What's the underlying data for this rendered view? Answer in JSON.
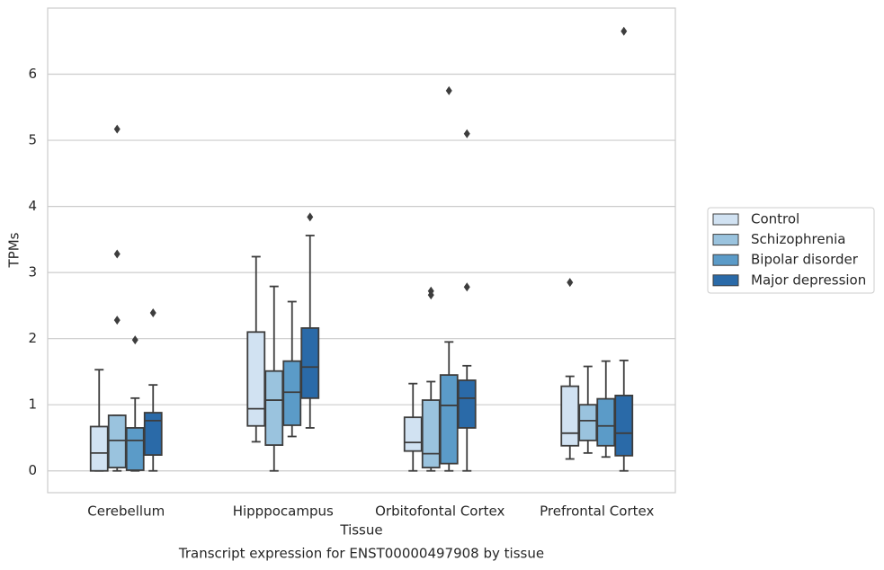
{
  "chart_data": {
    "type": "box",
    "title": "Transcript expression for ENST00000497908 by tissue",
    "x_label": "Tissue",
    "y_label": "TPMs",
    "categories": [
      "Cerebellum",
      "Hipppocampus",
      "Orbitofontal Cortex",
      "Prefrontal Cortex"
    ],
    "ylim": [
      -0.33,
      7.0
    ],
    "yticks": [
      0,
      1,
      2,
      3,
      4,
      5,
      6
    ],
    "grid": true,
    "legend_position": "right",
    "series": [
      {
        "name": "Control",
        "color": "#d1e2f2",
        "min": [
          0,
          0.44,
          0,
          0.18
        ],
        "q1": [
          0,
          0.68,
          0.3,
          0.38
        ],
        "median": [
          0.27,
          0.94,
          0.43,
          0.57
        ],
        "q3": [
          0.67,
          2.1,
          0.81,
          1.28
        ],
        "max": [
          1.53,
          3.24,
          1.32,
          1.43
        ],
        "outliers": [
          [],
          [],
          [],
          [
            2.85
          ]
        ]
      },
      {
        "name": "Schizophrenia",
        "color": "#9ac3de",
        "min": [
          0,
          0,
          0,
          0.27
        ],
        "q1": [
          0.05,
          0.39,
          0.05,
          0.46
        ],
        "median": [
          0.46,
          1.07,
          0.26,
          0.76
        ],
        "q3": [
          0.84,
          1.51,
          1.07,
          1.0
        ],
        "max": [
          0.84,
          2.79,
          1.35,
          1.58
        ],
        "outliers": [
          [
            5.17,
            3.28,
            2.28
          ],
          [],
          [
            2.72,
            2.66
          ],
          []
        ]
      },
      {
        "name": "Bipolar disorder",
        "color": "#5b9bc8",
        "min": [
          0,
          0.52,
          0,
          0.21
        ],
        "q1": [
          0.01,
          0.69,
          0.11,
          0.38
        ],
        "median": [
          0.46,
          1.19,
          0.99,
          0.68
        ],
        "q3": [
          0.65,
          1.66,
          1.45,
          1.09
        ],
        "max": [
          1.1,
          2.56,
          1.95,
          1.66
        ],
        "outliers": [
          [
            1.98
          ],
          [],
          [
            5.75
          ],
          []
        ]
      },
      {
        "name": "Major depression",
        "color": "#2a6aa8",
        "min": [
          0,
          0.65,
          0,
          0
        ],
        "q1": [
          0.24,
          1.1,
          0.65,
          0.23
        ],
        "median": [
          0.76,
          1.57,
          1.1,
          0.57
        ],
        "q3": [
          0.88,
          2.16,
          1.37,
          1.14
        ],
        "max": [
          1.3,
          3.56,
          1.59,
          1.67
        ],
        "outliers": [
          [
            2.39
          ],
          [
            3.84
          ],
          [
            5.1,
            2.78
          ],
          [
            6.65
          ]
        ]
      }
    ]
  }
}
